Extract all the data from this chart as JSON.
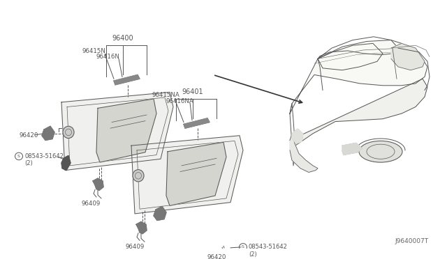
{
  "bg_color": "#ffffff",
  "line_color": "#555555",
  "text_color": "#555555",
  "diagram_title": "J9640007T",
  "parts": {
    "visor1_label": "96400",
    "visor2_label": "96401",
    "part_96415N": "96415N",
    "part_96416N": "96416N",
    "part_96415NA": "96415NA",
    "part_96416NA": "96416NA",
    "part_96420_left": "96420",
    "part_96420_right": "96420",
    "part_96409_left": "96409",
    "part_96409_right": "96409",
    "part_bolt_left": "08543-51642\n(2)",
    "part_bolt_right": "08543-51642\n(2)"
  }
}
